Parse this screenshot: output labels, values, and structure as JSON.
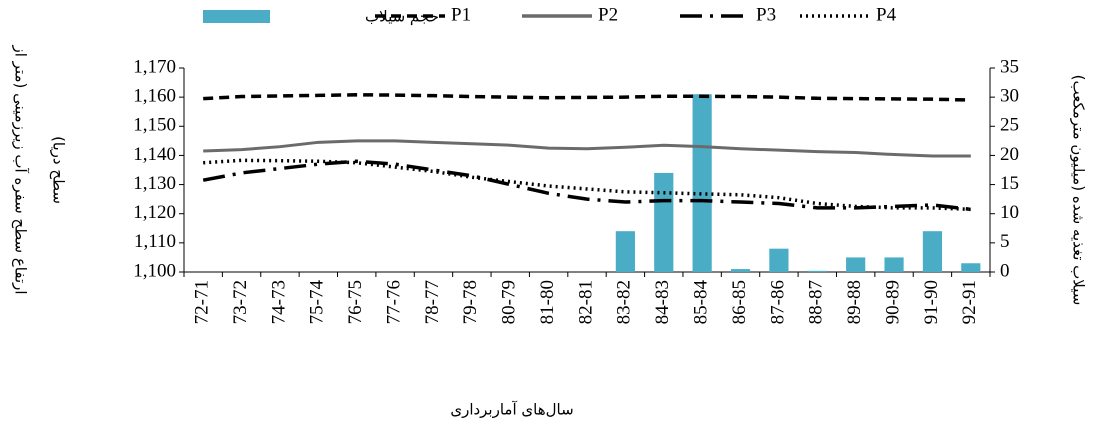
{
  "chart_data": {
    "type": "bar_line",
    "y_label_lines": [
      "ارتفاع سطح سفره آب زیرزمینی (متر از",
      "سطح دریا)"
    ],
    "y2_label": "سیلاب تغذیه شده (میلیون مترمکعب)",
    "x_label": "سال‌های آماربرداری",
    "categories": [
      "72-71",
      "73-72",
      "74-73",
      "75-74",
      "76-75",
      "77-76",
      "78-77",
      "79-78",
      "80-79",
      "81-80",
      "82-81",
      "83-82",
      "84-83",
      "85-84",
      "86-85",
      "87-86",
      "88-87",
      "89-88",
      "90-89",
      "91-90",
      "92-91"
    ],
    "series": [
      {
        "name": "حجم سیلاب",
        "kind": "bar",
        "axis": "y2",
        "color": "#4bacc6",
        "values": [
          null,
          null,
          null,
          null,
          null,
          null,
          null,
          null,
          null,
          null,
          null,
          7,
          17,
          30.5,
          0.5,
          4,
          0.2,
          2.5,
          2.5,
          7,
          1.5
        ]
      },
      {
        "name": "P1",
        "kind": "line",
        "color": "#000000",
        "dash": "10,6",
        "values": [
          1159.5,
          1160.2,
          1160.4,
          1160.6,
          1160.8,
          1160.7,
          1160.5,
          1160.2,
          1160.0,
          1159.8,
          1159.9,
          1160.0,
          1160.3,
          1160.3,
          1160.2,
          1160.0,
          1159.6,
          1159.5,
          1159.4,
          1159.3,
          1159.0
        ]
      },
      {
        "name": "P2",
        "kind": "line",
        "color": "#6b6b6b",
        "dash": "none",
        "values": [
          1141.5,
          1142,
          1143,
          1144.5,
          1145,
          1145,
          1144.5,
          1144,
          1143.5,
          1142.5,
          1142.3,
          1142.8,
          1143.5,
          1143,
          1142.3,
          1141.8,
          1141.3,
          1141,
          1140.3,
          1139.8,
          1139.8
        ]
      },
      {
        "name": "P3",
        "kind": "line",
        "color": "#000000",
        "dash": "22,8,3,8",
        "values": [
          1131.5,
          1134,
          1135.5,
          1137,
          1138,
          1137,
          1135,
          1133,
          1130,
          1127,
          1125,
          1124,
          1124.5,
          1124.5,
          1124,
          1123.5,
          1122,
          1122,
          1122.5,
          1123,
          1121.5
        ]
      },
      {
        "name": "P4",
        "kind": "line",
        "color": "#000000",
        "dash": "2,4",
        "values": [
          1137.5,
          1138.3,
          1138.2,
          1138,
          1137.5,
          1136,
          1134.5,
          1132.5,
          1131,
          1129.5,
          1128.5,
          1127.5,
          1127.2,
          1126.8,
          1126.5,
          1125.5,
          1123.5,
          1122.5,
          1122,
          1122,
          1121.5
        ]
      }
    ],
    "ylim": [
      1100,
      1170
    ],
    "yticks": [
      {
        "value": 1100,
        "label": "1,100"
      },
      {
        "value": 1110,
        "label": "1,110"
      },
      {
        "value": 1120,
        "label": "1,120"
      },
      {
        "value": 1130,
        "label": "1,130"
      },
      {
        "value": 1140,
        "label": "1,140"
      },
      {
        "value": 1150,
        "label": "1,150"
      },
      {
        "value": 1160,
        "label": "1,160"
      },
      {
        "value": 1170,
        "label": "1,170"
      }
    ],
    "y2lim": [
      0,
      35
    ],
    "y2ticks": [
      0,
      5,
      10,
      15,
      20,
      25,
      30,
      35
    ]
  }
}
